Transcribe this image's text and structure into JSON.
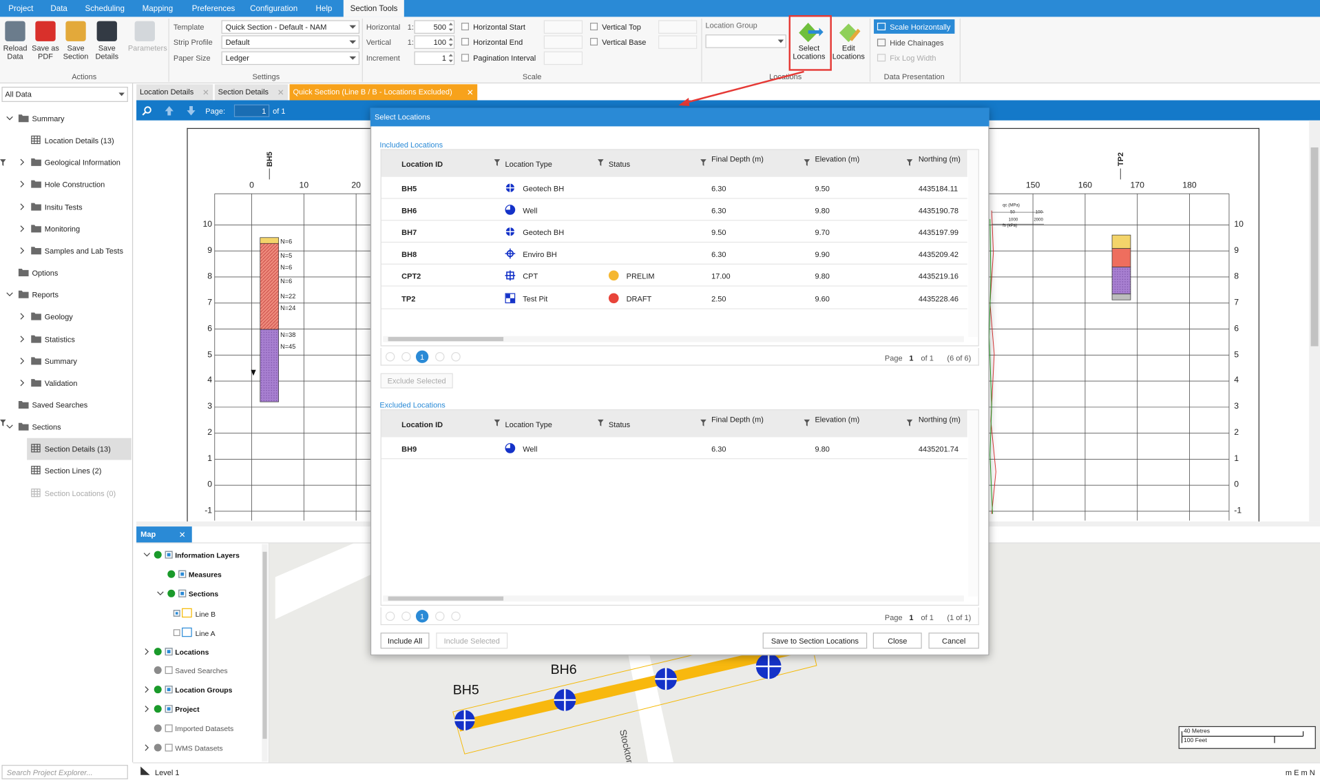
{
  "menu": [
    "Project",
    "Data",
    "Scheduling",
    "Mapping",
    "Preferences",
    "Configuration",
    "Help",
    "Section Tools"
  ],
  "ribbon": {
    "actions": {
      "label": "Actions",
      "buttons": [
        "Reload Data",
        "Save as PDF",
        "Save Section",
        "Save Details",
        "Parameters"
      ]
    },
    "settings": {
      "label": "Settings",
      "fields": [
        {
          "label": "Template",
          "value": "Quick Section - Default - NAM"
        },
        {
          "label": "Strip Profile",
          "value": "Default"
        },
        {
          "label": "Paper Size",
          "value": "Ledger"
        }
      ]
    },
    "scale": {
      "label": "Scale",
      "fields": [
        {
          "label": "Horizontal",
          "prefix": "1:",
          "value": "500"
        },
        {
          "label": "Vertical",
          "prefix": "1:",
          "value": "100"
        },
        {
          "label": "Increment",
          "value": "1"
        }
      ],
      "checks1": [
        "Horizontal Start",
        "Horizontal End",
        "Pagination Interval"
      ],
      "checks2": [
        "Vertical Top",
        "Vertical Base"
      ]
    },
    "locations": {
      "label": "Locations",
      "group_label": "Location Group",
      "buttons": [
        "Select Locations",
        "Edit Locations"
      ]
    },
    "presentation": {
      "label": "Data Presentation",
      "options": [
        "Scale Horizontally",
        "Hide Chainages",
        "Fix Log Width"
      ]
    }
  },
  "explorer": {
    "filter": "All Data",
    "search": "Search Project Explorer...",
    "tree": [
      {
        "text": "Summary",
        "icon": "folder",
        "expanded": true,
        "children": [
          {
            "text": "Location Details (13)",
            "icon": "grid"
          },
          {
            "text": "Geological Information",
            "icon": "folder",
            "expanded": false
          },
          {
            "text": "Hole Construction",
            "icon": "folder",
            "expanded": false
          },
          {
            "text": "Insitu Tests",
            "icon": "folder",
            "expanded": false
          },
          {
            "text": "Monitoring",
            "icon": "folder",
            "expanded": false
          },
          {
            "text": "Samples and Lab Tests",
            "icon": "folder",
            "expanded": false
          }
        ]
      },
      {
        "text": "Options",
        "icon": "folder"
      },
      {
        "text": "Reports",
        "icon": "folder",
        "expanded": true,
        "children": [
          {
            "text": "Geology",
            "icon": "folder",
            "expanded": false
          },
          {
            "text": "Statistics",
            "icon": "folder",
            "expanded": false
          },
          {
            "text": "Summary",
            "icon": "folder",
            "expanded": false
          },
          {
            "text": "Validation",
            "icon": "folder",
            "expanded": false
          }
        ]
      },
      {
        "text": "Saved Searches",
        "icon": "folder"
      },
      {
        "text": "Sections",
        "icon": "folder",
        "expanded": true,
        "children": [
          {
            "text": "Section Details (13)",
            "icon": "grid",
            "selected": true
          },
          {
            "text": "Section Lines (2)",
            "icon": "grid"
          },
          {
            "text": "Section Locations (0)",
            "icon": "grid",
            "disabled": true
          }
        ]
      }
    ]
  },
  "tabs": [
    {
      "text": "Location Details"
    },
    {
      "text": "Section Details"
    },
    {
      "text": "Quick Section (Line B / B - Locations Excluded)",
      "active": true
    }
  ],
  "toolbar": {
    "page_label": "Page:",
    "page": "1",
    "page_of": "of 1"
  },
  "section": {
    "boreholes": [
      "BH5",
      "TP2"
    ],
    "yticks": [
      10,
      9,
      8,
      7,
      6,
      5,
      4,
      3,
      2,
      1,
      0,
      -1
    ],
    "xticks_left": [
      0,
      10,
      20
    ],
    "xticks_right": [
      150,
      160,
      170,
      180
    ],
    "blow_counts": [
      "N=6",
      "N=5",
      "N=6",
      "N=6",
      "N=22",
      "N=24",
      "N=38",
      "N=45"
    ],
    "legend": {
      "qc": "qc (MPa)",
      "fs": "fs (kPa)",
      "qc_ticks": [
        50,
        100
      ],
      "fs_ticks": [
        1000,
        2000
      ]
    }
  },
  "map": {
    "tab": "Map",
    "layers": [
      {
        "text": "Information Layers",
        "visible": true,
        "checked": true,
        "expanded": true,
        "children": [
          {
            "text": "Measures",
            "visible": true,
            "checked": true
          },
          {
            "text": "Sections",
            "visible": true,
            "checked": true,
            "expanded": true,
            "children": [
              {
                "text": "Line B",
                "checked": true
              },
              {
                "text": "Line A",
                "checked": false
              }
            ]
          }
        ]
      },
      {
        "text": "Locations",
        "visible": true,
        "checked": true,
        "expanded": false
      },
      {
        "text": "Saved Searches",
        "visible": false,
        "checked": false
      },
      {
        "text": "Location Groups",
        "visible": true,
        "checked": true,
        "expanded": false
      },
      {
        "text": "Project",
        "visible": true,
        "checked": true,
        "expanded": false
      },
      {
        "text": "Imported Datasets",
        "visible": false,
        "checked": false
      },
      {
        "text": "WMS Datasets",
        "visible": false,
        "checked": false,
        "expanded": false
      }
    ],
    "labels": [
      "BH5",
      "BH6"
    ],
    "road": "Stockton D",
    "scale": [
      "40 Metres",
      "100 Feet"
    ]
  },
  "dialog": {
    "title": "Select Locations",
    "columns": [
      "Location ID",
      "Location Type",
      "Status",
      "Final Depth (m)",
      "Elevation (m)",
      "Northing (m)"
    ],
    "included": {
      "title": "Included Locations",
      "rows": [
        {
          "id": "BH5",
          "type": "Geotech BH",
          "icon": "geotech",
          "depth": "6.30",
          "elevation": "9.50",
          "northing": "4435184.11"
        },
        {
          "id": "BH6",
          "type": "Well",
          "icon": "well",
          "depth": "6.30",
          "elevation": "9.80",
          "northing": "4435190.78"
        },
        {
          "id": "BH7",
          "type": "Geotech BH",
          "icon": "geotech",
          "depth": "9.50",
          "elevation": "9.70",
          "northing": "4435197.99"
        },
        {
          "id": "BH8",
          "type": "Enviro BH",
          "icon": "enviro",
          "depth": "6.30",
          "elevation": "9.90",
          "northing": "4435209.42"
        },
        {
          "id": "CPT2",
          "type": "CPT",
          "icon": "cpt",
          "status": "PRELIM",
          "status_color": "#f5b731",
          "depth": "17.00",
          "elevation": "9.80",
          "northing": "4435219.16"
        },
        {
          "id": "TP2",
          "type": "Test Pit",
          "icon": "pit",
          "status": "DRAFT",
          "status_color": "#e8443a",
          "depth": "2.50",
          "elevation": "9.60",
          "northing": "4435228.46"
        }
      ],
      "pager": {
        "page_label": "Page",
        "page": "1",
        "of": "of 1",
        "count": "(6 of 6)"
      },
      "action": "Exclude Selected"
    },
    "excluded": {
      "title": "Excluded Locations",
      "rows": [
        {
          "id": "BH9",
          "type": "Well",
          "icon": "well",
          "depth": "6.30",
          "elevation": "9.80",
          "northing": "4435201.74"
        }
      ],
      "pager": {
        "page_label": "Page",
        "page": "1",
        "of": "of 1",
        "count": "(1 of 1)"
      }
    },
    "buttons": [
      "Include All",
      "Include Selected",
      "Save to Section Locations",
      "Close",
      "Cancel"
    ]
  },
  "status": {
    "level": "Level 1",
    "units": "m E m N"
  }
}
